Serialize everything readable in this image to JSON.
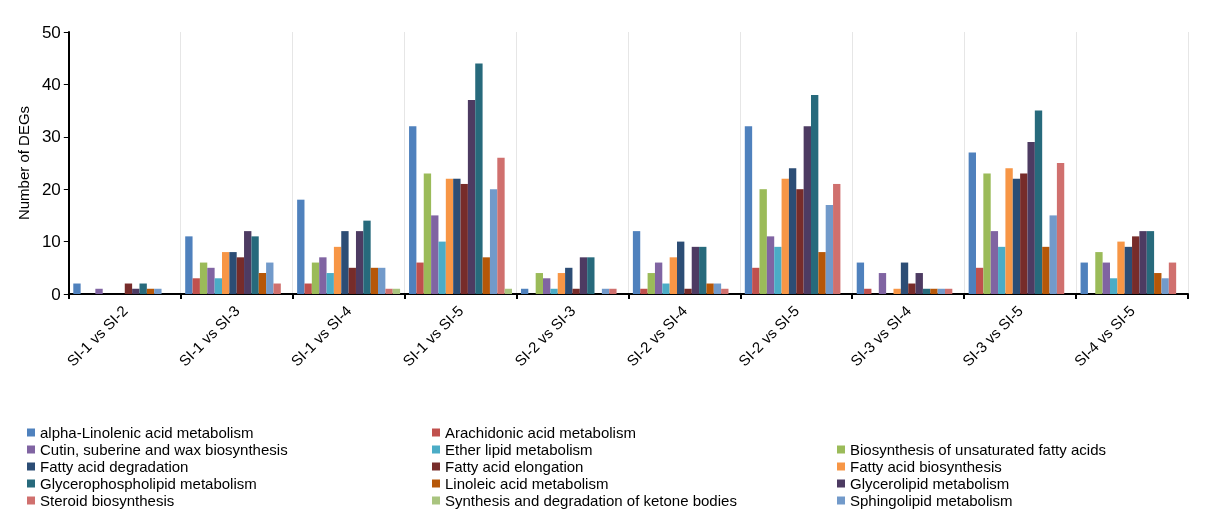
{
  "chart_data": {
    "type": "bar",
    "ylabel": "Number of DEGs",
    "categories": [
      "SI-1 vs SI-2",
      "SI-1 vs SI-3",
      "SI-1 vs SI-4",
      "SI-1 vs SI-5",
      "SI-2 vs SI-3",
      "SI-2 vs SI-4",
      "SI-2 vs SI-5",
      "SI-3 vs SI-4",
      "SI-3 vs SI-5",
      "SI-4 vs SI-5"
    ],
    "ylim": [
      0,
      50
    ],
    "yticks": [
      0,
      10,
      20,
      30,
      40,
      50
    ],
    "grid": "x",
    "legend": "bottom",
    "series": [
      {
        "name": "alpha-Linolenic acid metabolism",
        "color": "#4f81bd",
        "values": [
          2,
          11,
          18,
          32,
          1,
          12,
          32,
          6,
          27,
          6
        ]
      },
      {
        "name": "Arachidonic acid metabolism",
        "color": "#c0504d",
        "values": [
          0,
          3,
          2,
          6,
          0,
          1,
          5,
          1,
          5,
          0
        ]
      },
      {
        "name": "Biosynthesis of unsaturated fatty acids",
        "color": "#9bbb59",
        "values": [
          0,
          6,
          6,
          23,
          4,
          4,
          20,
          0,
          23,
          8
        ]
      },
      {
        "name": "Cutin, suberine and wax biosynthesis",
        "color": "#8064a2",
        "values": [
          1,
          5,
          7,
          15,
          3,
          6,
          11,
          4,
          12,
          6
        ]
      },
      {
        "name": "Ether lipid metabolism",
        "color": "#4bacc6",
        "values": [
          0,
          3,
          4,
          10,
          1,
          2,
          9,
          0,
          9,
          3
        ]
      },
      {
        "name": "Fatty acid biosynthesis",
        "color": "#f79646",
        "values": [
          0,
          8,
          9,
          22,
          4,
          7,
          22,
          1,
          24,
          10
        ]
      },
      {
        "name": "Fatty acid degradation",
        "color": "#2c4d75",
        "values": [
          0,
          8,
          12,
          22,
          5,
          10,
          24,
          6,
          22,
          9
        ]
      },
      {
        "name": "Fatty acid elongation",
        "color": "#772c2a",
        "values": [
          2,
          7,
          5,
          21,
          1,
          1,
          20,
          2,
          23,
          11
        ]
      },
      {
        "name": "Glycerolipid metabolism",
        "color": "#4d3b62",
        "values": [
          1,
          12,
          12,
          37,
          7,
          9,
          32,
          4,
          29,
          12
        ]
      },
      {
        "name": "Glycerophospholipid metabolism",
        "color": "#276a7c",
        "values": [
          2,
          11,
          14,
          44,
          7,
          9,
          38,
          1,
          35,
          12
        ]
      },
      {
        "name": "Linoleic acid metabolism",
        "color": "#b65708",
        "values": [
          1,
          4,
          5,
          7,
          0,
          2,
          8,
          1,
          9,
          4
        ]
      },
      {
        "name": "Sphingolipid metabolism",
        "color": "#729aca",
        "values": [
          1,
          6,
          5,
          20,
          1,
          2,
          17,
          1,
          15,
          3
        ]
      },
      {
        "name": "Steroid biosynthesis",
        "color": "#d0706e",
        "values": [
          0,
          2,
          1,
          26,
          1,
          1,
          21,
          1,
          25,
          6
        ]
      },
      {
        "name": "Synthesis and degradation of ketone bodies",
        "color": "#a9c47f",
        "values": [
          0,
          0,
          1,
          1,
          0,
          0,
          0,
          0,
          0,
          0
        ]
      }
    ]
  }
}
